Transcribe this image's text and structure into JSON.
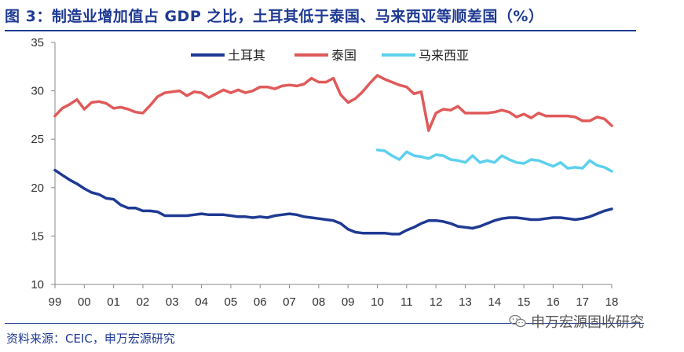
{
  "title": "图 3：制造业增加值占 GDP 之比，土耳其低于泰国、马来西亚等顺差国（%）",
  "source": "资料来源：CEIC，申万宏源研究",
  "watermark": "申万宏源固收研究",
  "colors": {
    "title": "#1f3a93",
    "turkey": "#1f3a93",
    "thailand": "#e05a5a",
    "malaysia": "#5cd0ee",
    "axis": "#888888"
  },
  "chart_data": {
    "type": "line",
    "title": "图 3：制造业增加值占 GDP 之比，土耳其低于泰国、马来西亚等顺差国（%）",
    "xlabel": "",
    "ylabel": "",
    "ylim": [
      10,
      35
    ],
    "xlim": [
      1999,
      2018
    ],
    "y_ticks": [
      "10",
      "15",
      "20",
      "25",
      "30",
      "35"
    ],
    "x_ticks": [
      "99",
      "00",
      "01",
      "02",
      "03",
      "04",
      "05",
      "06",
      "07",
      "08",
      "09",
      "10",
      "11",
      "12",
      "13",
      "14",
      "15",
      "16",
      "17",
      "18"
    ],
    "grid": false,
    "legend_position": "top-center",
    "series": [
      {
        "name": "土耳其",
        "color": "#1f3a93",
        "points": [
          [
            1999.0,
            21.8
          ],
          [
            1999.25,
            21.3
          ],
          [
            1999.5,
            20.8
          ],
          [
            1999.75,
            20.4
          ],
          [
            2000.0,
            19.9
          ],
          [
            2000.25,
            19.5
          ],
          [
            2000.5,
            19.3
          ],
          [
            2000.75,
            18.9
          ],
          [
            2001.0,
            18.8
          ],
          [
            2001.25,
            18.2
          ],
          [
            2001.5,
            17.9
          ],
          [
            2001.75,
            17.9
          ],
          [
            2002.0,
            17.6
          ],
          [
            2002.25,
            17.6
          ],
          [
            2002.5,
            17.5
          ],
          [
            2002.75,
            17.1
          ],
          [
            2003.0,
            17.1
          ],
          [
            2003.25,
            17.1
          ],
          [
            2003.5,
            17.1
          ],
          [
            2003.75,
            17.2
          ],
          [
            2004.0,
            17.3
          ],
          [
            2004.25,
            17.2
          ],
          [
            2004.5,
            17.2
          ],
          [
            2004.75,
            17.2
          ],
          [
            2005.0,
            17.1
          ],
          [
            2005.25,
            17.0
          ],
          [
            2005.5,
            17.0
          ],
          [
            2005.75,
            16.9
          ],
          [
            2006.0,
            17.0
          ],
          [
            2006.25,
            16.9
          ],
          [
            2006.5,
            17.1
          ],
          [
            2006.75,
            17.2
          ],
          [
            2007.0,
            17.3
          ],
          [
            2007.25,
            17.2
          ],
          [
            2007.5,
            17.0
          ],
          [
            2007.75,
            16.9
          ],
          [
            2008.0,
            16.8
          ],
          [
            2008.25,
            16.7
          ],
          [
            2008.5,
            16.6
          ],
          [
            2008.75,
            16.3
          ],
          [
            2009.0,
            15.7
          ],
          [
            2009.25,
            15.4
          ],
          [
            2009.5,
            15.3
          ],
          [
            2009.75,
            15.3
          ],
          [
            2010.0,
            15.3
          ],
          [
            2010.25,
            15.3
          ],
          [
            2010.5,
            15.2
          ],
          [
            2010.75,
            15.2
          ],
          [
            2011.0,
            15.6
          ],
          [
            2011.25,
            15.9
          ],
          [
            2011.5,
            16.3
          ],
          [
            2011.75,
            16.6
          ],
          [
            2012.0,
            16.6
          ],
          [
            2012.25,
            16.5
          ],
          [
            2012.5,
            16.3
          ],
          [
            2012.75,
            16.0
          ],
          [
            2013.0,
            15.9
          ],
          [
            2013.25,
            15.8
          ],
          [
            2013.5,
            16.0
          ],
          [
            2013.75,
            16.3
          ],
          [
            2014.0,
            16.6
          ],
          [
            2014.25,
            16.8
          ],
          [
            2014.5,
            16.9
          ],
          [
            2014.75,
            16.9
          ],
          [
            2015.0,
            16.8
          ],
          [
            2015.25,
            16.7
          ],
          [
            2015.5,
            16.7
          ],
          [
            2015.75,
            16.8
          ],
          [
            2016.0,
            16.9
          ],
          [
            2016.25,
            16.9
          ],
          [
            2016.5,
            16.8
          ],
          [
            2016.75,
            16.7
          ],
          [
            2017.0,
            16.8
          ],
          [
            2017.25,
            17.0
          ],
          [
            2017.5,
            17.3
          ],
          [
            2017.75,
            17.6
          ],
          [
            2018.0,
            17.8
          ]
        ]
      },
      {
        "name": "泰国",
        "color": "#e05a5a",
        "points": [
          [
            1999.0,
            27.4
          ],
          [
            1999.25,
            28.2
          ],
          [
            1999.5,
            28.6
          ],
          [
            1999.75,
            29.1
          ],
          [
            2000.0,
            28.1
          ],
          [
            2000.25,
            28.8
          ],
          [
            2000.5,
            28.9
          ],
          [
            2000.75,
            28.7
          ],
          [
            2001.0,
            28.2
          ],
          [
            2001.25,
            28.3
          ],
          [
            2001.5,
            28.1
          ],
          [
            2001.75,
            27.8
          ],
          [
            2002.0,
            27.7
          ],
          [
            2002.25,
            28.5
          ],
          [
            2002.5,
            29.4
          ],
          [
            2002.75,
            29.8
          ],
          [
            2003.0,
            29.9
          ],
          [
            2003.25,
            30.0
          ],
          [
            2003.5,
            29.5
          ],
          [
            2003.75,
            29.9
          ],
          [
            2004.0,
            29.8
          ],
          [
            2004.25,
            29.3
          ],
          [
            2004.5,
            29.7
          ],
          [
            2004.75,
            30.1
          ],
          [
            2005.0,
            29.8
          ],
          [
            2005.25,
            30.1
          ],
          [
            2005.5,
            29.8
          ],
          [
            2005.75,
            30.0
          ],
          [
            2006.0,
            30.4
          ],
          [
            2006.25,
            30.4
          ],
          [
            2006.5,
            30.2
          ],
          [
            2006.75,
            30.5
          ],
          [
            2007.0,
            30.6
          ],
          [
            2007.25,
            30.5
          ],
          [
            2007.5,
            30.7
          ],
          [
            2007.75,
            31.3
          ],
          [
            2008.0,
            30.9
          ],
          [
            2008.25,
            30.9
          ],
          [
            2008.5,
            31.3
          ],
          [
            2008.75,
            29.6
          ],
          [
            2009.0,
            28.8
          ],
          [
            2009.25,
            29.2
          ],
          [
            2009.5,
            29.9
          ],
          [
            2009.75,
            30.8
          ],
          [
            2010.0,
            31.6
          ],
          [
            2010.25,
            31.2
          ],
          [
            2010.5,
            30.9
          ],
          [
            2010.75,
            30.6
          ],
          [
            2011.0,
            30.4
          ],
          [
            2011.25,
            29.7
          ],
          [
            2011.5,
            29.9
          ],
          [
            2011.75,
            25.9
          ],
          [
            2012.0,
            27.7
          ],
          [
            2012.25,
            28.1
          ],
          [
            2012.5,
            28.0
          ],
          [
            2012.75,
            28.4
          ],
          [
            2013.0,
            27.7
          ],
          [
            2013.25,
            27.7
          ],
          [
            2013.5,
            27.7
          ],
          [
            2013.75,
            27.7
          ],
          [
            2014.0,
            27.8
          ],
          [
            2014.25,
            28.0
          ],
          [
            2014.5,
            27.8
          ],
          [
            2014.75,
            27.3
          ],
          [
            2015.0,
            27.6
          ],
          [
            2015.25,
            27.2
          ],
          [
            2015.5,
            27.7
          ],
          [
            2015.75,
            27.4
          ],
          [
            2016.0,
            27.4
          ],
          [
            2016.25,
            27.4
          ],
          [
            2016.5,
            27.4
          ],
          [
            2016.75,
            27.3
          ],
          [
            2017.0,
            26.9
          ],
          [
            2017.25,
            26.9
          ],
          [
            2017.5,
            27.3
          ],
          [
            2017.75,
            27.1
          ],
          [
            2018.0,
            26.4
          ]
        ]
      },
      {
        "name": "马来西亚",
        "color": "#5cd0ee",
        "points": [
          [
            2010.0,
            23.9
          ],
          [
            2010.25,
            23.8
          ],
          [
            2010.5,
            23.3
          ],
          [
            2010.75,
            22.9
          ],
          [
            2011.0,
            23.7
          ],
          [
            2011.25,
            23.3
          ],
          [
            2011.5,
            23.2
          ],
          [
            2011.75,
            23.0
          ],
          [
            2012.0,
            23.4
          ],
          [
            2012.25,
            23.3
          ],
          [
            2012.5,
            22.9
          ],
          [
            2012.75,
            22.8
          ],
          [
            2013.0,
            22.6
          ],
          [
            2013.25,
            23.3
          ],
          [
            2013.5,
            22.6
          ],
          [
            2013.75,
            22.8
          ],
          [
            2014.0,
            22.6
          ],
          [
            2014.25,
            23.3
          ],
          [
            2014.5,
            22.9
          ],
          [
            2014.75,
            22.6
          ],
          [
            2015.0,
            22.5
          ],
          [
            2015.25,
            22.9
          ],
          [
            2015.5,
            22.8
          ],
          [
            2015.75,
            22.5
          ],
          [
            2016.0,
            22.2
          ],
          [
            2016.25,
            22.6
          ],
          [
            2016.5,
            22.0
          ],
          [
            2016.75,
            22.1
          ],
          [
            2017.0,
            22.0
          ],
          [
            2017.25,
            22.8
          ],
          [
            2017.5,
            22.3
          ],
          [
            2017.75,
            22.1
          ],
          [
            2018.0,
            21.7
          ]
        ]
      }
    ]
  }
}
